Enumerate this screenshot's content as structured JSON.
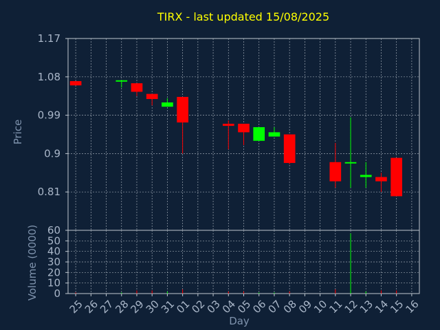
{
  "chart_data": {
    "type": "candlestick",
    "title": "TIRX - last updated 15/08/2025",
    "xlabel": "Day",
    "price_panel": {
      "ylabel": "Price",
      "yticks": [
        0.81,
        0.9,
        0.99,
        1.08,
        1.17
      ],
      "ylim": [
        0.72,
        1.17
      ]
    },
    "volume_panel": {
      "ylabel": "Volume (0000)",
      "yticks": [
        0,
        10,
        20,
        30,
        40,
        50,
        60
      ],
      "ylim": [
        0,
        60
      ]
    },
    "x_ticks": [
      "25",
      "26",
      "27",
      "28",
      "29",
      "30",
      "31",
      "01",
      "02",
      "03",
      "04",
      "05",
      "06",
      "07",
      "08",
      "09",
      "10",
      "11",
      "12",
      "13",
      "14",
      "15",
      "16"
    ],
    "colors": {
      "up": "#00ff00",
      "down": "#ff0000",
      "background": "#0f2036",
      "grid": "#c0c8d0",
      "title": "#ffff00"
    },
    "candles": [
      {
        "day": "25",
        "open": 1.07,
        "high": 1.07,
        "low": 1.06,
        "close": 1.06,
        "volume": 1
      },
      {
        "day": "28",
        "open": 1.07,
        "high": 1.072,
        "low": 1.055,
        "close": 1.072,
        "volume": 1
      },
      {
        "day": "29",
        "open": 1.065,
        "high": 1.065,
        "low": 1.035,
        "close": 1.045,
        "volume": 3
      },
      {
        "day": "30",
        "open": 1.04,
        "high": 1.04,
        "low": 1.013,
        "close": 1.028,
        "volume": 3
      },
      {
        "day": "31",
        "open": 1.01,
        "high": 1.03,
        "low": 1.01,
        "close": 1.02,
        "volume": 2
      },
      {
        "day": "01",
        "open": 1.033,
        "high": 1.033,
        "low": 0.9,
        "close": 0.973,
        "volume": 4
      },
      {
        "day": "04",
        "open": 0.97,
        "high": 0.978,
        "low": 0.91,
        "close": 0.965,
        "volume": 2
      },
      {
        "day": "05",
        "open": 0.97,
        "high": 0.97,
        "low": 0.92,
        "close": 0.95,
        "volume": 2
      },
      {
        "day": "06",
        "open": 0.93,
        "high": 0.962,
        "low": 0.93,
        "close": 0.962,
        "volume": 1
      },
      {
        "day": "07",
        "open": 0.94,
        "high": 0.962,
        "low": 0.94,
        "close": 0.95,
        "volume": 1
      },
      {
        "day": "08",
        "open": 0.945,
        "high": 0.945,
        "low": 0.875,
        "close": 0.878,
        "volume": 2
      },
      {
        "day": "11",
        "open": 0.88,
        "high": 0.925,
        "low": 0.82,
        "close": 0.835,
        "volume": 4
      },
      {
        "day": "12",
        "open": 0.878,
        "high": 0.985,
        "low": 0.82,
        "close": 0.88,
        "volume": 57
      },
      {
        "day": "13",
        "open": 0.845,
        "high": 0.88,
        "low": 0.82,
        "close": 0.85,
        "volume": 2
      },
      {
        "day": "14",
        "open": 0.845,
        "high": 0.855,
        "low": 0.81,
        "close": 0.835,
        "volume": 3
      },
      {
        "day": "15",
        "open": 0.89,
        "high": 0.89,
        "low": 0.8,
        "close": 0.8,
        "volume": 3
      }
    ]
  }
}
